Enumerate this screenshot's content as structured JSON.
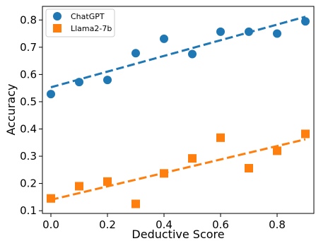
{
  "chart_data": {
    "type": "scatter",
    "xlabel": "Deductive Score",
    "ylabel": "Accuracy",
    "xlim": [
      -0.03,
      0.93
    ],
    "ylim": [
      0.09,
      0.85
    ],
    "x_ticks": [
      0.0,
      0.2,
      0.4,
      0.6,
      0.8
    ],
    "y_ticks": [
      0.1,
      0.2,
      0.3,
      0.4,
      0.5,
      0.6,
      0.7,
      0.8
    ],
    "x_tick_labels": [
      "0.0",
      "0.2",
      "0.4",
      "0.6",
      "0.8"
    ],
    "y_tick_labels": [
      "0.1",
      "0.2",
      "0.3",
      "0.4",
      "0.5",
      "0.6",
      "0.7",
      "0.8"
    ],
    "grid": false,
    "legend_position": "top-left",
    "series": [
      {
        "name": "ChatGPT",
        "marker": "circle",
        "color": "#1f77b4",
        "x": [
          0.0,
          0.1,
          0.2,
          0.3,
          0.4,
          0.5,
          0.6,
          0.7,
          0.8,
          0.9
        ],
        "y": [
          0.528,
          0.572,
          0.58,
          0.678,
          0.731,
          0.675,
          0.757,
          0.757,
          0.75,
          0.795
        ],
        "trendline": {
          "x": [
            0.0,
            0.9
          ],
          "y": [
            0.553,
            0.812
          ],
          "style": "dashed"
        }
      },
      {
        "name": "Llama2-7b",
        "marker": "square",
        "color": "#ff7f0e",
        "x": [
          0.0,
          0.1,
          0.2,
          0.3,
          0.4,
          0.5,
          0.6,
          0.7,
          0.8,
          0.9
        ],
        "y": [
          0.145,
          0.19,
          0.207,
          0.125,
          0.237,
          0.292,
          0.368,
          0.256,
          0.32,
          0.382
        ],
        "trendline": {
          "x": [
            0.0,
            0.9
          ],
          "y": [
            0.14,
            0.362
          ],
          "style": "dashed"
        }
      }
    ]
  }
}
